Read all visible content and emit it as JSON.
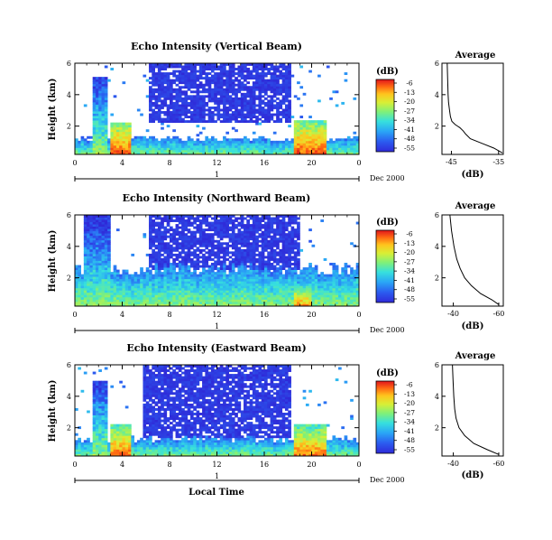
{
  "chart_data": [
    {
      "type": "heatmap",
      "title": "Echo Intensity (Vertical Beam)",
      "ylabel": "Height (km)",
      "xlabel": "",
      "x_ticks": [
        "0",
        "4",
        "8",
        "12",
        "16",
        "20",
        "0"
      ],
      "y_ticks": [
        "2",
        "4",
        "6"
      ],
      "day_ticks": [
        "1"
      ],
      "date_label": "Dec 2000",
      "xlim": [
        0,
        24
      ],
      "ylim": [
        0.2,
        6
      ],
      "colorbar": {
        "label": "(dB)",
        "ticks": [
          "-6",
          "-13",
          "-20",
          "-27",
          "-34",
          "-41",
          "-48",
          "-55"
        ]
      },
      "pattern": {
        "plumes": [
          {
            "x": [
              1.6,
              2.8
            ],
            "top": 5.2,
            "intensity": -28
          },
          {
            "x": [
              3.1,
              4.7
            ],
            "top": 2.3,
            "intensity": -8
          },
          {
            "x": [
              18.5,
              21.3
            ],
            "top": 2.4,
            "intensity": -8
          }
        ],
        "surface_layer_top": 1.2,
        "upper_echo": {
          "x": [
            6.2,
            18.2
          ],
          "bottom": 2.3,
          "top": 6.0,
          "intensity": -53
        }
      },
      "average": {
        "title": "Average",
        "xlabel": "(dB)",
        "x_ticks": [
          "-45",
          "-35"
        ],
        "xlim": [
          -47,
          -34
        ],
        "y_ticks": [
          "2",
          "4",
          "6"
        ],
        "ylim": [
          0.2,
          6
        ],
        "profile": [
          [
            -34.2,
            0.3
          ],
          [
            -36,
            0.6
          ],
          [
            -38.5,
            0.9
          ],
          [
            -41,
            1.2
          ],
          [
            -42,
            1.5
          ],
          [
            -42.5,
            1.7
          ],
          [
            -43.2,
            1.9
          ],
          [
            -44.2,
            2.1
          ],
          [
            -44.9,
            2.3
          ],
          [
            -45.2,
            2.6
          ],
          [
            -45.4,
            3.0
          ],
          [
            -45.6,
            3.5
          ],
          [
            -45.7,
            4.0
          ],
          [
            -45.8,
            5.0
          ],
          [
            -45.9,
            6.0
          ]
        ]
      }
    },
    {
      "type": "heatmap",
      "title": "Echo Intensity (Northward Beam)",
      "ylabel": "Height (km)",
      "xlabel": "",
      "x_ticks": [
        "0",
        "4",
        "8",
        "12",
        "16",
        "20",
        "0"
      ],
      "y_ticks": [
        "2",
        "4",
        "6"
      ],
      "day_ticks": [
        "1"
      ],
      "date_label": "Dec 2000",
      "xlim": [
        0,
        24
      ],
      "ylim": [
        0.2,
        6
      ],
      "colorbar": {
        "label": "(dB)",
        "ticks": [
          "-6",
          "-13",
          "-20",
          "-27",
          "-34",
          "-41",
          "-48",
          "-55"
        ]
      },
      "pattern": {
        "plumes": [
          {
            "x": [
              0.8,
              3.0
            ],
            "top": 6.0,
            "intensity": -30
          },
          {
            "x": [
              18.5,
              20.0
            ],
            "top": 1.5,
            "intensity": -12
          }
        ],
        "surface_layer_top": 2.6,
        "upper_echo": {
          "x": [
            6.2,
            19.0
          ],
          "bottom": 2.5,
          "top": 6.0,
          "intensity": -53
        }
      },
      "average": {
        "title": "Average",
        "xlabel": "(dB)",
        "x_ticks": [
          "-40",
          "-60"
        ],
        "xlim": [
          -35,
          -62
        ],
        "y_ticks": [
          "2",
          "4",
          "6"
        ],
        "ylim": [
          0.2,
          6
        ],
        "profile": [
          [
            -60,
            0.3
          ],
          [
            -57,
            0.6
          ],
          [
            -52,
            1.0
          ],
          [
            -48,
            1.5
          ],
          [
            -45,
            2.0
          ],
          [
            -43,
            2.6
          ],
          [
            -41.5,
            3.2
          ],
          [
            -40.3,
            4.0
          ],
          [
            -39.2,
            5.0
          ],
          [
            -38.5,
            6.0
          ]
        ]
      }
    },
    {
      "type": "heatmap",
      "title": "Echo Intensity (Eastward Beam)",
      "ylabel": "Height (km)",
      "xlabel": "Local Time",
      "x_ticks": [
        "0",
        "4",
        "8",
        "12",
        "16",
        "20",
        "0"
      ],
      "y_ticks": [
        "2",
        "4",
        "6"
      ],
      "day_ticks": [
        "1"
      ],
      "date_label": "Dec 2000",
      "xlim": [
        0,
        24
      ],
      "ylim": [
        0.2,
        6
      ],
      "colorbar": {
        "label": "(dB)",
        "ticks": [
          "-6",
          "-13",
          "-20",
          "-27",
          "-34",
          "-41",
          "-48",
          "-55"
        ]
      },
      "pattern": {
        "plumes": [
          {
            "x": [
              1.6,
              2.8
            ],
            "top": 5.0,
            "intensity": -28
          },
          {
            "x": [
              3.1,
              4.8
            ],
            "top": 2.3,
            "intensity": -10
          },
          {
            "x": [
              18.5,
              21.3
            ],
            "top": 2.2,
            "intensity": -10
          }
        ],
        "surface_layer_top": 1.3,
        "upper_echo": {
          "x": [
            5.7,
            18.3
          ],
          "bottom": 1.3,
          "top": 6.0,
          "intensity": -53
        }
      },
      "average": {
        "title": "Average",
        "xlabel": "(dB)",
        "x_ticks": [
          "-40",
          "-60"
        ],
        "xlim": [
          -35,
          -62
        ],
        "y_ticks": [
          "2",
          "4",
          "6"
        ],
        "ylim": [
          0.2,
          6
        ],
        "profile": [
          [
            -60,
            0.3
          ],
          [
            -55,
            0.6
          ],
          [
            -49,
            1.0
          ],
          [
            -45,
            1.5
          ],
          [
            -42.5,
            2.0
          ],
          [
            -41.2,
            2.6
          ],
          [
            -40.6,
            3.2
          ],
          [
            -40.2,
            4.0
          ],
          [
            -39.9,
            5.0
          ],
          [
            -39.6,
            6.0
          ]
        ]
      }
    }
  ],
  "colors": {
    "colormap": [
      "#2f2ad8",
      "#2b5cf0",
      "#2aa5f6",
      "#36e0de",
      "#7ef07a",
      "#d8ef36",
      "#ffc41d",
      "#ff6a12",
      "#e0141c"
    ],
    "low_echo": "#3a3af0",
    "line": "#000000",
    "background": "#ffffff"
  }
}
